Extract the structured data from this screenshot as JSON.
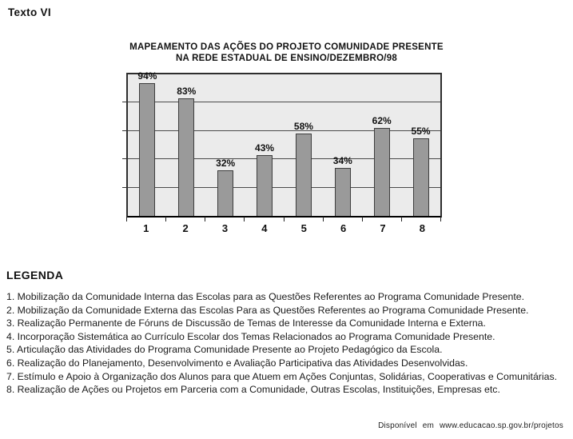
{
  "page": {
    "label": "Texto VI"
  },
  "chart": {
    "title_line1": "MAPEAMENTO DAS AÇÕES DO PROJETO COMUNIDADE PRESENTE",
    "title_line2": "NA REDE ESTADUAL DE ENSINO/DEZEMBRO/98"
  },
  "chart_data": {
    "type": "bar",
    "title": "MAPEAMENTO DAS AÇÕES DO PROJETO COMUNIDADE PRESENTE NA REDE ESTADUAL DE ENSINO/DEZEMBRO/98",
    "categories": [
      "1",
      "2",
      "3",
      "4",
      "5",
      "6",
      "7",
      "8"
    ],
    "values": [
      94,
      83,
      32,
      43,
      58,
      34,
      62,
      55
    ],
    "value_labels": [
      "94%",
      "83%",
      "32%",
      "43%",
      "58%",
      "34%",
      "62%",
      "55%"
    ],
    "xlabel": "",
    "ylabel": "",
    "ylim": [
      0,
      100
    ],
    "gridline_interval": 20,
    "grid": true,
    "legend_position": "below-as-numbered-list",
    "colors": {
      "bar_fill": "#9a9a9a",
      "bar_border": "#3d3d3d",
      "plot_background": "#ebebeb",
      "gridline": "#4a4a4a",
      "axis": "#000000"
    }
  },
  "legend": {
    "heading": "LEGENDA",
    "items": [
      "1. Mobilização da Comunidade Interna das Escolas para as Questões Referentes ao Programa Comunidade Presente.",
      "2. Mobilização da Comunidade Externa das Escolas Para as Questões Referentes ao Programa Comunidade Presente.",
      "3. Realização Permanente de Fóruns de Discussão de Temas de Interesse da Comunidade Interna e Externa.",
      "4. Incorporação Sistemática ao Currículo Escolar dos Temas Relacionados ao Programa Comunidade Presente.",
      "5. Articulação das Atividades do Programa Comunidade Presente ao Projeto Pedagógico da Escola.",
      "6. Realização do Planejamento, Desenvolvimento e Avaliação Participativa das Atividades Desenvolvidas.",
      "7. Estímulo e Apoio à Organização dos Alunos para que Atuem em Ações Conjuntas, Solidárias, Cooperativas e Comunitárias.",
      "8. Realização de Ações ou Projetos em Parceria com a Comunidade, Outras Escolas, Instituições, Empresas etc."
    ]
  },
  "footer": {
    "source": "Disponível em www.educacao.sp.gov.br/projetos"
  }
}
